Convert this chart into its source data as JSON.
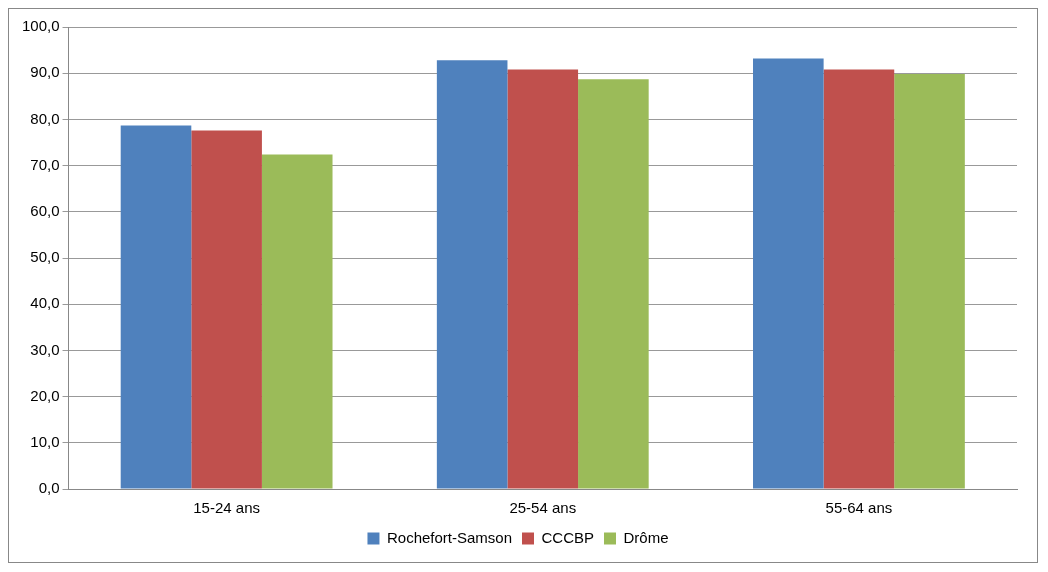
{
  "chart_data": {
    "type": "bar",
    "categories": [
      "15-24 ans",
      "25-54 ans",
      "55-64 ans"
    ],
    "series": [
      {
        "name": "Rochefort-Samson",
        "color": "#4f81bd",
        "values": [
          78.7,
          92.8,
          93.2
        ]
      },
      {
        "name": "CCCBP",
        "color": "#c0504d",
        "values": [
          77.6,
          90.8,
          90.8
        ]
      },
      {
        "name": "Drôme",
        "color": "#9bbb59",
        "values": [
          72.4,
          88.7,
          89.8
        ]
      }
    ],
    "ylim": [
      0,
      100
    ],
    "yticks": [
      {
        "value": 0,
        "label": "0,0"
      },
      {
        "value": 10,
        "label": "10,0"
      },
      {
        "value": 20,
        "label": "20,0"
      },
      {
        "value": 30,
        "label": "30,0"
      },
      {
        "value": 40,
        "label": "40,0"
      },
      {
        "value": 50,
        "label": "50,0"
      },
      {
        "value": 60,
        "label": "60,0"
      },
      {
        "value": 70,
        "label": "70,0"
      },
      {
        "value": 80,
        "label": "80,0"
      },
      {
        "value": 90,
        "label": "90,0"
      },
      {
        "value": 100,
        "label": "100,0"
      }
    ],
    "grid": "y",
    "legend": "bottom"
  }
}
